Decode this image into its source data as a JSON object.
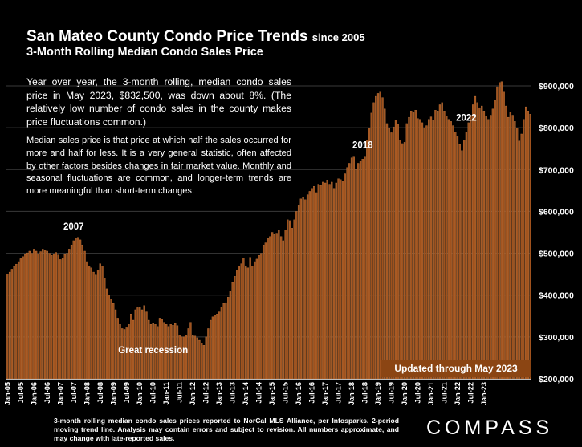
{
  "header": {
    "title": "San Mateo County Condo Price Trends",
    "title_suffix": "since 2005",
    "subtitle": "3-Month Rolling Median Condo Sales Price"
  },
  "body_text": {
    "paragraph1": "Year over year, the 3-month rolling, median condo sales price in May 2023, $832,500, was down about 8%. (The relatively low number of condo sales in the county makes price fluctuations common.)",
    "paragraph2": "Median sales price is that price at which half the sales occurred for more and half for less. It is a very general statistic, often affected by other factors besides changes in fair market value. Monthly and seasonal fluctuations are common, and longer-term trends are more meaningful than short-term changes."
  },
  "footnote": "3-month rolling median condo sales prices reported to NorCal MLS Alliance, per Infosparks. 2-period moving trend line. Analysis may contain errors and subject to revision. All numbers approximate, and may change with late-reported sales.",
  "logo": "COMPASS",
  "colors": {
    "background": "#000000",
    "bar": "#A0521D",
    "bar_edge": "#D98B4E",
    "text": "#FFFFFF",
    "banner": "#8B4513"
  },
  "chart_data": {
    "type": "bar",
    "start_month": "Jan-05",
    "end_month": "May-23",
    "ylim": [
      200000,
      925000
    ],
    "yticks": [
      200000,
      300000,
      400000,
      500000,
      600000,
      700000,
      800000,
      900000
    ],
    "ytick_labels": [
      "$200,000",
      "$300,000",
      "$400,000",
      "$500,000",
      "$600,000",
      "$700,000",
      "$800,000",
      "$900,000"
    ],
    "xtick_labels": [
      "Jan-05",
      "Jul-05",
      "Jan-06",
      "Jul-06",
      "Jan-07",
      "Jul-07",
      "Jan-08",
      "Jul-08",
      "Jan-09",
      "Jul-09",
      "Jan-10",
      "Jul-10",
      "Jan-11",
      "Jul-11",
      "Jan-12",
      "Jul-12",
      "Jan-13",
      "Jul-13",
      "Jan-14",
      "Jul-14",
      "Jan-15",
      "Jul-15",
      "Jan-16",
      "Jul-16",
      "Jan-17",
      "Jul-17",
      "Jan-18",
      "Jul-18",
      "Jan-19",
      "Jul-19",
      "Jan-20",
      "Jul-20",
      "Jan-21",
      "Jul-21",
      "Jan-22",
      "Jul-22",
      "Jan-23"
    ],
    "grid": true,
    "annotations": [
      {
        "label": "2007",
        "month": "Jul-07"
      },
      {
        "label": "2018",
        "month": "Jun-18"
      },
      {
        "label": "2022",
        "month": "May-22"
      },
      {
        "label": "Great recession",
        "month": "Jul-10"
      }
    ],
    "banner": "Updated through May 2023",
    "values": [
      450000,
      455000,
      462000,
      468000,
      474000,
      480000,
      487000,
      492000,
      497000,
      501000,
      505000,
      500000,
      510000,
      505000,
      498000,
      504000,
      510000,
      508000,
      505000,
      500000,
      495000,
      498000,
      502000,
      496000,
      485000,
      488000,
      497000,
      500000,
      510000,
      520000,
      530000,
      535000,
      538000,
      532000,
      520000,
      505000,
      480000,
      470000,
      465000,
      455000,
      448000,
      460000,
      475000,
      470000,
      440000,
      415000,
      400000,
      390000,
      380000,
      365000,
      345000,
      330000,
      320000,
      318000,
      322000,
      330000,
      355000,
      340000,
      365000,
      370000,
      372000,
      365000,
      375000,
      360000,
      340000,
      330000,
      332000,
      330000,
      325000,
      345000,
      342000,
      335000,
      330000,
      325000,
      330000,
      328000,
      332000,
      327000,
      305000,
      300000,
      300000,
      305000,
      320000,
      335000,
      305000,
      302000,
      298000,
      292000,
      285000,
      280000,
      300000,
      320000,
      340000,
      348000,
      352000,
      355000,
      360000,
      372000,
      380000,
      382000,
      395000,
      410000,
      430000,
      445000,
      460000,
      470000,
      475000,
      488000,
      470000,
      465000,
      490000,
      470000,
      480000,
      486000,
      495000,
      500000,
      520000,
      525000,
      535000,
      540000,
      550000,
      545000,
      548000,
      555000,
      540000,
      530000,
      555000,
      580000,
      578000,
      560000,
      580000,
      600000,
      615000,
      630000,
      635000,
      628000,
      640000,
      648000,
      655000,
      660000,
      645000,
      665000,
      662000,
      670000,
      668000,
      675000,
      665000,
      670000,
      655000,
      668000,
      678000,
      676000,
      672000,
      690000,
      705000,
      715000,
      728000,
      730000,
      700000,
      715000,
      720000,
      725000,
      730000,
      770000,
      800000,
      835000,
      860000,
      875000,
      882000,
      885000,
      872000,
      845000,
      810000,
      798000,
      788000,
      802000,
      818000,
      808000,
      770000,
      762000,
      765000,
      810000,
      825000,
      840000,
      838000,
      842000,
      822000,
      820000,
      812000,
      800000,
      805000,
      820000,
      826000,
      818000,
      842000,
      840000,
      855000,
      860000,
      840000,
      828000,
      820000,
      815000,
      805000,
      790000,
      780000,
      760000,
      745000,
      770000,
      790000,
      812000,
      830000,
      855000,
      875000,
      860000,
      848000,
      852000,
      840000,
      828000,
      820000,
      830000,
      845000,
      865000,
      898000,
      908000,
      910000,
      885000,
      852000,
      825000,
      838000,
      830000,
      815000,
      800000,
      768000,
      785000,
      820000,
      850000,
      840000,
      832500
    ]
  }
}
